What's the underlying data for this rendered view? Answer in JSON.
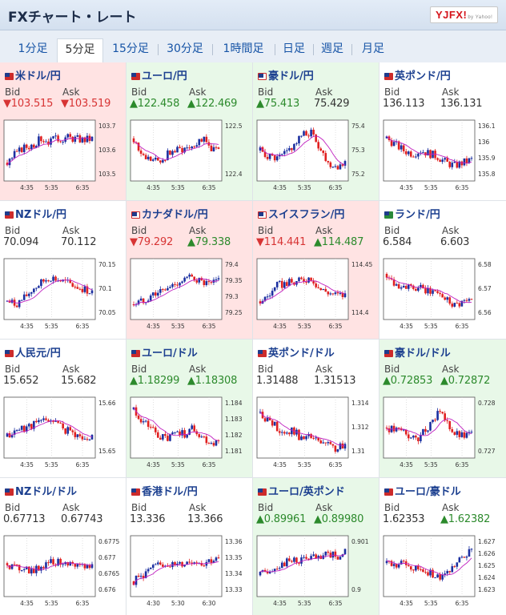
{
  "header": {
    "title": "FXチャート・レート",
    "logo": "YJFX!",
    "logo_sub": "by Yahoo!"
  },
  "tabs": [
    "1分足",
    "5分足",
    "15分足",
    "30分足",
    "1時間足",
    "日足",
    "週足",
    "月足"
  ],
  "active_tab": "5分足",
  "labels": {
    "bid": "Bid",
    "ask": "Ask"
  },
  "pairs": [
    {
      "name": "米ドル/円",
      "trend": "down",
      "bid": "▼103.515",
      "ask": "▼103.519",
      "yticks": [
        "103.7",
        "103.6",
        "103.5"
      ],
      "xticks": [
        "4:35",
        "5:35",
        "6:35"
      ]
    },
    {
      "name": "ユーロ/円",
      "trend": "up",
      "bid": "▲122.458",
      "ask": "▲122.469",
      "yticks": [
        "122.5",
        "122.4"
      ],
      "xticks": [
        "4:35",
        "5:35",
        "6:35"
      ]
    },
    {
      "name": "豪ドル/円",
      "trend": "up",
      "bid": "▲75.413",
      "ask": "75.429",
      "yticks": [
        "75.4",
        "75.3",
        "75.2"
      ],
      "xticks": [
        "4:35",
        "5:35",
        "6:35"
      ]
    },
    {
      "name": "英ポンド/円",
      "trend": "none",
      "bid": "136.113",
      "ask": "136.131",
      "yticks": [
        "136.1",
        "136",
        "135.9",
        "135.8"
      ],
      "xticks": [
        "4:35",
        "5:35",
        "6:35"
      ]
    },
    {
      "name": "NZドル/円",
      "trend": "none",
      "bid": "70.094",
      "ask": "70.112",
      "yticks": [
        "70.15",
        "70.1",
        "70.05"
      ],
      "xticks": [
        "4:35",
        "5:35",
        "6:35"
      ]
    },
    {
      "name": "カナダドル/円",
      "trend": "down",
      "bid": "▼79.292",
      "ask": "▲79.338",
      "yticks": [
        "79.4",
        "79.35",
        "79.3",
        "79.25"
      ],
      "xticks": [
        "4:35",
        "5:35",
        "6:35"
      ]
    },
    {
      "name": "スイスフラン/円",
      "trend": "down",
      "bid": "▼114.441",
      "ask": "▲114.487",
      "yticks": [
        "114.45",
        "114.4"
      ],
      "xticks": [
        "4:35",
        "5:35",
        "6:35"
      ]
    },
    {
      "name": "ランド/円",
      "trend": "none",
      "bid": "6.584",
      "ask": "6.603",
      "yticks": [
        "6.58",
        "6.57",
        "6.56"
      ],
      "xticks": [
        "4:35",
        "5:35",
        "6:35"
      ]
    },
    {
      "name": "人民元/円",
      "trend": "none",
      "bid": "15.652",
      "ask": "15.682",
      "yticks": [
        "15.66",
        "15.65"
      ],
      "xticks": [
        "4:35",
        "5:35",
        "6:35"
      ]
    },
    {
      "name": "ユーロ/ドル",
      "trend": "up",
      "bid": "▲1.18299",
      "ask": "▲1.18308",
      "yticks": [
        "1.184",
        "1.183",
        "1.182",
        "1.181"
      ],
      "xticks": [
        "4:35",
        "5:35",
        "6:35"
      ]
    },
    {
      "name": "英ポンド/ドル",
      "trend": "none",
      "bid": "1.31488",
      "ask": "1.31513",
      "yticks": [
        "1.314",
        "1.312",
        "1.31"
      ],
      "xticks": [
        "4:35",
        "5:35",
        "6:35"
      ]
    },
    {
      "name": "豪ドル/ドル",
      "trend": "up",
      "bid": "▲0.72853",
      "ask": "▲0.72872",
      "yticks": [
        "0.728",
        "0.727"
      ],
      "xticks": [
        "4:35",
        "5:35",
        "6:35"
      ]
    },
    {
      "name": "NZドル/ドル",
      "trend": "none",
      "bid": "0.67713",
      "ask": "0.67743",
      "yticks": [
        "0.6775",
        "0.677",
        "0.6765",
        "0.676"
      ],
      "xticks": [
        "4:35",
        "5:35",
        "6:35"
      ]
    },
    {
      "name": "香港ドル/円",
      "trend": "none",
      "bid": "13.336",
      "ask": "13.366",
      "yticks": [
        "13.36",
        "13.35",
        "13.34",
        "13.33"
      ],
      "xticks": [
        "4:30",
        "5:30",
        "6:30"
      ]
    },
    {
      "name": "ユーロ/英ポンド",
      "trend": "up",
      "bid": "▲0.89961",
      "ask": "▲0.89980",
      "yticks": [
        "0.901",
        "0.9"
      ],
      "xticks": [
        "4:35",
        "5:35",
        "6:35"
      ]
    },
    {
      "name": "ユーロ/豪ドル",
      "trend": "none",
      "bid": "1.62353",
      "ask": "▲1.62382",
      "yticks": [
        "1.627",
        "1.626",
        "1.625",
        "1.624",
        "1.623"
      ],
      "xticks": [
        "4:35",
        "5:35",
        "6:35"
      ]
    }
  ],
  "colors": {
    "up_candle": "#1b2fa0",
    "down_candle": "#e02020",
    "ma_line": "#c020c0",
    "bid_up": "#2c8a2c",
    "bid_down": "#d73434"
  }
}
